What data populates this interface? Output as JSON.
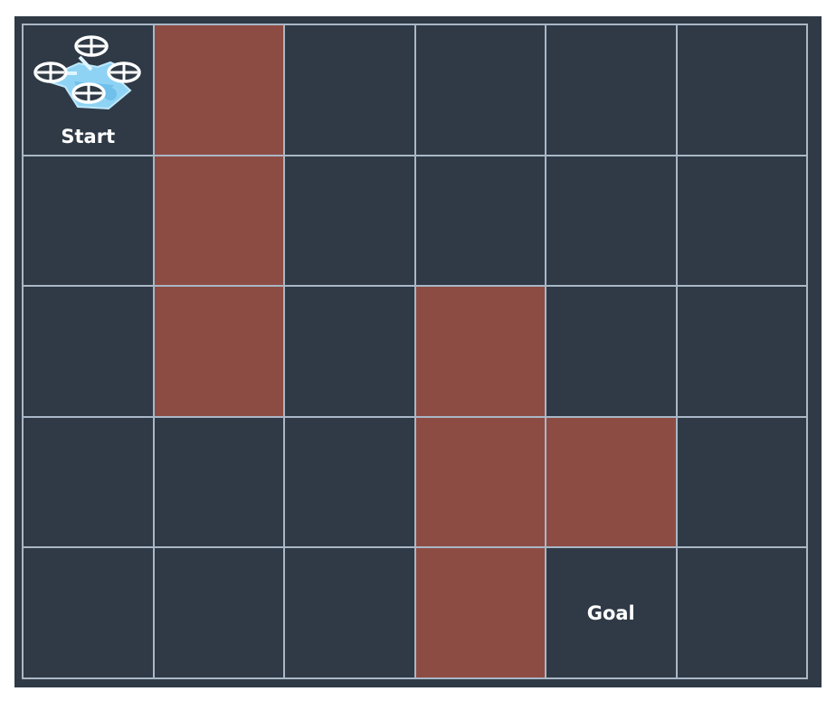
{
  "grid": {
    "rows": 5,
    "cols": 6,
    "obstacles": [
      [
        0,
        1
      ],
      [
        1,
        1
      ],
      [
        2,
        1
      ],
      [
        2,
        3
      ],
      [
        3,
        3
      ],
      [
        3,
        4
      ],
      [
        4,
        3
      ]
    ],
    "start": {
      "row": 0,
      "col": 0,
      "label": "Start"
    },
    "goal": {
      "row": 4,
      "col": 4,
      "label": "Goal"
    }
  },
  "colors": {
    "free": "#2f3a46",
    "obstacle": "#8d4c43",
    "line": "#a9b7c6",
    "drone": "#8fd3f4"
  }
}
